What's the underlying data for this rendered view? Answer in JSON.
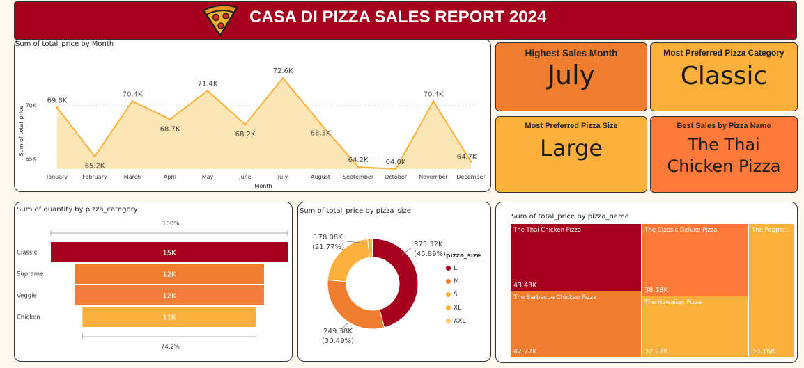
{
  "header": {
    "title": "CASA DI PIZZA SALES REPORT 2024",
    "logo_icon": "pizza-slice-icon"
  },
  "line_panel": {
    "title": "Sum of total_price by Month"
  },
  "kpis": [
    {
      "title": "Highest Sales Month",
      "value": "July",
      "color": "#f07c2e"
    },
    {
      "title": "Most Preferred Pizza Category",
      "value": "Classic",
      "color": "#fbb03b"
    },
    {
      "title": "Most Preferred Pizza Size",
      "value": "Large",
      "color": "#fbb03b"
    },
    {
      "title": "Best Sales by Pizza Name",
      "value_line1": "The Thai",
      "value_line2": "Chicken Pizza",
      "color": "#ff7a3a"
    }
  ],
  "funnel_panel": {
    "title": "Sum of quantity by pizza_category",
    "top_pct": "100%",
    "bottom_pct": "74.2%"
  },
  "donut_panel": {
    "title": "Sum of total_price by pizza_size",
    "legend_title": "pizza_size"
  },
  "treemap_panel": {
    "title": "Sum of total_price by pizza_name"
  },
  "chart_data": [
    {
      "type": "area",
      "title": "Sum of total_price by Month",
      "xlabel": "Month",
      "ylabel": "Sum of total_price",
      "categories": [
        "January",
        "February",
        "March",
        "April",
        "May",
        "June",
        "July",
        "August",
        "September",
        "October",
        "November",
        "December"
      ],
      "values": [
        69.8,
        65.2,
        70.4,
        68.7,
        71.4,
        68.2,
        72.6,
        68.3,
        64.2,
        64.0,
        70.4,
        64.7
      ],
      "value_labels": [
        "69.8K",
        "65.2K",
        "70.4K",
        "68.7K",
        "71.4K",
        "68.2K",
        "72.6K",
        "68.3K",
        "64.2K",
        "64.0K",
        "70.4K",
        "64.7K"
      ],
      "yticks": [
        "70K",
        "65K"
      ],
      "ylim": [
        64,
        73
      ],
      "color": "#fbb03b"
    },
    {
      "type": "bar",
      "title": "Sum of quantity by pizza_category",
      "categories": [
        "Classic",
        "Supreme",
        "Veggie",
        "Chicken"
      ],
      "values": [
        15,
        12,
        12,
        11
      ],
      "value_labels": [
        "15K",
        "12K",
        "12K",
        "11K"
      ],
      "colors": [
        "#a5001e",
        "#f07c2e",
        "#f47c3c",
        "#fbb03b"
      ]
    },
    {
      "type": "pie",
      "title": "Sum of total_price by pizza_size",
      "categories": [
        "L",
        "M",
        "S",
        "XL",
        "XXL"
      ],
      "values": [
        375.32,
        249.38,
        178.08,
        14.08,
        1.01
      ],
      "labels": [
        {
          "value": "375.32K",
          "pct": "(45.89%)"
        },
        {
          "value": "249.38K",
          "pct": "(30.49%)"
        },
        {
          "value": "178.08K",
          "pct": "(21.77%)"
        }
      ],
      "colors": [
        "#a5001e",
        "#f07c2e",
        "#fbb03b",
        "#fbb03b",
        "#f9c860"
      ]
    },
    {
      "type": "heatmap",
      "title": "Sum of total_price by pizza_name",
      "items": [
        {
          "name": "The Thai Chicken Pizza",
          "label": "43.43K",
          "value": 43.43,
          "color": "#a5001e"
        },
        {
          "name": "The Barbecue Chicken Pizza",
          "label": "42.77K",
          "value": 42.77,
          "color": "#f07c2e"
        },
        {
          "name": "The Classic Deluxe Pizza",
          "label": "38.18K",
          "value": 38.18,
          "color": "#ff7a3a"
        },
        {
          "name": "The Hawaiian Pizza",
          "label": "32.27K",
          "value": 32.27,
          "color": "#fbb03b"
        },
        {
          "name": "The Pepper...",
          "label": "30.16K",
          "value": 30.16,
          "color": "#fbb03b"
        }
      ]
    }
  ]
}
